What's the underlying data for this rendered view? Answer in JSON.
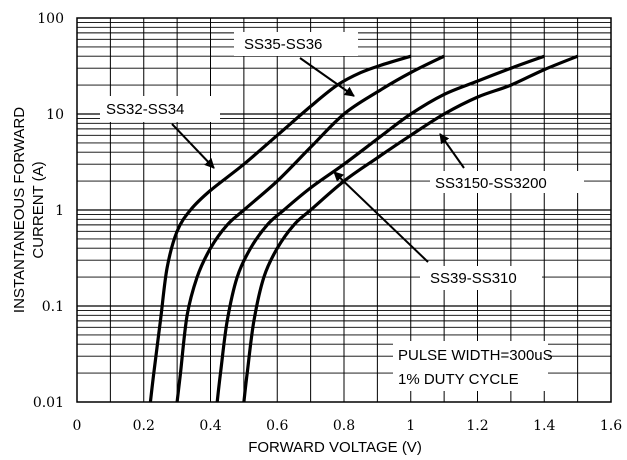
{
  "chart_data": {
    "type": "line",
    "xlabel": "FORWARD VOLTAGE (V)",
    "ylabel_line1": "INSTANTANEOUS FORWARD",
    "ylabel_line2": "CURRENT (A)",
    "x_scale": "linear",
    "y_scale": "log",
    "xlim": [
      0,
      1.6
    ],
    "ylim": [
      0.01,
      100
    ],
    "grid": true,
    "x_ticks": [
      0,
      0.2,
      0.4,
      0.6,
      0.8,
      1,
      1.2,
      1.4,
      1.6
    ],
    "x_tick_labels": [
      "0",
      "0.2",
      "0.4",
      "0.6",
      "0.8",
      "1",
      "1.2",
      "1.4",
      "1.6"
    ],
    "y_ticks": [
      0.01,
      0.1,
      1,
      10,
      100
    ],
    "y_tick_labels": [
      "0.01",
      "0.1",
      "1",
      "10",
      "100"
    ],
    "series": [
      {
        "name": "SS32-SS34",
        "x": [
          0.22,
          0.23,
          0.25,
          0.27,
          0.3,
          0.34,
          0.4,
          0.5,
          0.6,
          0.7,
          0.78,
          0.85,
          0.92,
          1.0
        ],
        "y": [
          0.01,
          0.02,
          0.07,
          0.25,
          0.6,
          1.0,
          1.6,
          3.0,
          6.0,
          12.0,
          20.0,
          27.0,
          33.0,
          40.0
        ]
      },
      {
        "name": "SS35-SS36",
        "x": [
          0.3,
          0.31,
          0.33,
          0.36,
          0.4,
          0.45,
          0.5,
          0.6,
          0.7,
          0.8,
          0.9,
          1.0,
          1.1
        ],
        "y": [
          0.01,
          0.02,
          0.08,
          0.2,
          0.4,
          0.7,
          1.0,
          2.0,
          4.5,
          10.0,
          17.0,
          27.0,
          40.0
        ]
      },
      {
        "name": "SS39-SS310",
        "x": [
          0.42,
          0.43,
          0.45,
          0.48,
          0.52,
          0.57,
          0.62,
          0.7,
          0.8,
          0.9,
          1.0,
          1.1,
          1.2,
          1.3,
          1.4
        ],
        "y": [
          0.01,
          0.02,
          0.07,
          0.2,
          0.4,
          0.7,
          1.0,
          1.7,
          3.0,
          5.5,
          10.0,
          16.0,
          22.0,
          30.0,
          40.0
        ]
      },
      {
        "name": "SS3150-SS3200",
        "x": [
          0.5,
          0.51,
          0.53,
          0.56,
          0.6,
          0.65,
          0.7,
          0.8,
          0.9,
          1.0,
          1.1,
          1.2,
          1.3,
          1.4,
          1.5
        ],
        "y": [
          0.01,
          0.02,
          0.07,
          0.2,
          0.4,
          0.7,
          1.0,
          2.0,
          3.5,
          6.0,
          10.0,
          15.0,
          20.0,
          29.0,
          40.0
        ]
      }
    ],
    "annotations": {
      "ss32": "SS32-SS34",
      "ss35": "SS35-SS36",
      "ss3150": "SS3150-SS3200",
      "ss39": "SS39-SS310",
      "note_line1": "PULSE WIDTH=300uS",
      "note_line2": "1% DUTY CYCLE"
    }
  }
}
